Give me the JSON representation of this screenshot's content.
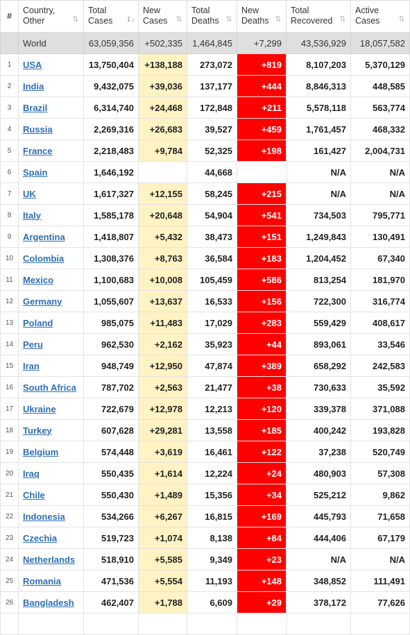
{
  "table": {
    "headers": [
      {
        "lines": [
          "#"
        ],
        "sortable": false
      },
      {
        "lines": [
          "Country,",
          "Other"
        ],
        "sortable": true,
        "sort_icon": "sort-both-icon"
      },
      {
        "lines": [
          "Total",
          "Cases"
        ],
        "sortable": true,
        "sort_icon": "sort-desc-active-icon"
      },
      {
        "lines": [
          "New",
          "Cases"
        ],
        "sortable": true,
        "sort_icon": "sort-both-icon"
      },
      {
        "lines": [
          "Total",
          "Deaths"
        ],
        "sortable": true,
        "sort_icon": "sort-both-icon"
      },
      {
        "lines": [
          "New",
          "Deaths"
        ],
        "sortable": true,
        "sort_icon": "sort-both-icon"
      },
      {
        "lines": [
          "Total",
          "Recovered"
        ],
        "sortable": true,
        "sort_icon": "sort-both-icon"
      },
      {
        "lines": [
          "Active",
          "Cases"
        ],
        "sortable": true,
        "sort_icon": "sort-both-icon"
      }
    ],
    "world": {
      "rank": "",
      "country": "World",
      "total_cases": "63,059,356",
      "new_cases": "+502,335",
      "total_deaths": "1,464,845",
      "new_deaths": "+7,299",
      "total_recovered": "43,536,929",
      "active_cases": "18,057,582"
    },
    "rows": [
      {
        "rank": "1",
        "country": "USA",
        "total_cases": "13,750,404",
        "new_cases": "+138,188",
        "total_deaths": "273,072",
        "new_deaths": "+819",
        "total_recovered": "8,107,203",
        "active_cases": "5,370,129"
      },
      {
        "rank": "2",
        "country": "India",
        "total_cases": "9,432,075",
        "new_cases": "+39,036",
        "total_deaths": "137,177",
        "new_deaths": "+444",
        "total_recovered": "8,846,313",
        "active_cases": "448,585"
      },
      {
        "rank": "3",
        "country": "Brazil",
        "total_cases": "6,314,740",
        "new_cases": "+24,468",
        "total_deaths": "172,848",
        "new_deaths": "+211",
        "total_recovered": "5,578,118",
        "active_cases": "563,774"
      },
      {
        "rank": "4",
        "country": "Russia",
        "total_cases": "2,269,316",
        "new_cases": "+26,683",
        "total_deaths": "39,527",
        "new_deaths": "+459",
        "total_recovered": "1,761,457",
        "active_cases": "468,332"
      },
      {
        "rank": "5",
        "country": "France",
        "total_cases": "2,218,483",
        "new_cases": "+9,784",
        "total_deaths": "52,325",
        "new_deaths": "+198",
        "total_recovered": "161,427",
        "active_cases": "2,004,731"
      },
      {
        "rank": "6",
        "country": "Spain",
        "total_cases": "1,646,192",
        "new_cases": "",
        "total_deaths": "44,668",
        "new_deaths": "",
        "total_recovered": "N/A",
        "active_cases": "N/A"
      },
      {
        "rank": "7",
        "country": "UK",
        "total_cases": "1,617,327",
        "new_cases": "+12,155",
        "total_deaths": "58,245",
        "new_deaths": "+215",
        "total_recovered": "N/A",
        "active_cases": "N/A"
      },
      {
        "rank": "8",
        "country": "Italy",
        "total_cases": "1,585,178",
        "new_cases": "+20,648",
        "total_deaths": "54,904",
        "new_deaths": "+541",
        "total_recovered": "734,503",
        "active_cases": "795,771"
      },
      {
        "rank": "9",
        "country": "Argentina",
        "total_cases": "1,418,807",
        "new_cases": "+5,432",
        "total_deaths": "38,473",
        "new_deaths": "+151",
        "total_recovered": "1,249,843",
        "active_cases": "130,491"
      },
      {
        "rank": "10",
        "country": "Colombia",
        "total_cases": "1,308,376",
        "new_cases": "+8,763",
        "total_deaths": "36,584",
        "new_deaths": "+183",
        "total_recovered": "1,204,452",
        "active_cases": "67,340"
      },
      {
        "rank": "11",
        "country": "Mexico",
        "total_cases": "1,100,683",
        "new_cases": "+10,008",
        "total_deaths": "105,459",
        "new_deaths": "+586",
        "total_recovered": "813,254",
        "active_cases": "181,970"
      },
      {
        "rank": "12",
        "country": "Germany",
        "total_cases": "1,055,607",
        "new_cases": "+13,637",
        "total_deaths": "16,533",
        "new_deaths": "+156",
        "total_recovered": "722,300",
        "active_cases": "316,774"
      },
      {
        "rank": "13",
        "country": "Poland",
        "total_cases": "985,075",
        "new_cases": "+11,483",
        "total_deaths": "17,029",
        "new_deaths": "+283",
        "total_recovered": "559,429",
        "active_cases": "408,617"
      },
      {
        "rank": "14",
        "country": "Peru",
        "total_cases": "962,530",
        "new_cases": "+2,162",
        "total_deaths": "35,923",
        "new_deaths": "+44",
        "total_recovered": "893,061",
        "active_cases": "33,546"
      },
      {
        "rank": "15",
        "country": "Iran",
        "total_cases": "948,749",
        "new_cases": "+12,950",
        "total_deaths": "47,874",
        "new_deaths": "+389",
        "total_recovered": "658,292",
        "active_cases": "242,583"
      },
      {
        "rank": "16",
        "country": "South Africa",
        "total_cases": "787,702",
        "new_cases": "+2,563",
        "total_deaths": "21,477",
        "new_deaths": "+38",
        "total_recovered": "730,633",
        "active_cases": "35,592"
      },
      {
        "rank": "17",
        "country": "Ukraine",
        "total_cases": "722,679",
        "new_cases": "+12,978",
        "total_deaths": "12,213",
        "new_deaths": "+120",
        "total_recovered": "339,378",
        "active_cases": "371,088"
      },
      {
        "rank": "18",
        "country": "Turkey",
        "total_cases": "607,628",
        "new_cases": "+29,281",
        "total_deaths": "13,558",
        "new_deaths": "+185",
        "total_recovered": "400,242",
        "active_cases": "193,828"
      },
      {
        "rank": "19",
        "country": "Belgium",
        "total_cases": "574,448",
        "new_cases": "+3,619",
        "total_deaths": "16,461",
        "new_deaths": "+122",
        "total_recovered": "37,238",
        "active_cases": "520,749"
      },
      {
        "rank": "20",
        "country": "Iraq",
        "total_cases": "550,435",
        "new_cases": "+1,614",
        "total_deaths": "12,224",
        "new_deaths": "+24",
        "total_recovered": "480,903",
        "active_cases": "57,308"
      },
      {
        "rank": "21",
        "country": "Chile",
        "total_cases": "550,430",
        "new_cases": "+1,489",
        "total_deaths": "15,356",
        "new_deaths": "+34",
        "total_recovered": "525,212",
        "active_cases": "9,862"
      },
      {
        "rank": "22",
        "country": "Indonesia",
        "total_cases": "534,266",
        "new_cases": "+6,267",
        "total_deaths": "16,815",
        "new_deaths": "+169",
        "total_recovered": "445,793",
        "active_cases": "71,658"
      },
      {
        "rank": "23",
        "country": "Czechia",
        "total_cases": "519,723",
        "new_cases": "+1,074",
        "total_deaths": "8,138",
        "new_deaths": "+84",
        "total_recovered": "444,406",
        "active_cases": "67,179"
      },
      {
        "rank": "24",
        "country": "Netherlands",
        "total_cases": "518,910",
        "new_cases": "+5,585",
        "total_deaths": "9,349",
        "new_deaths": "+23",
        "total_recovered": "N/A",
        "active_cases": "N/A"
      },
      {
        "rank": "25",
        "country": "Romania",
        "total_cases": "471,536",
        "new_cases": "+5,554",
        "total_deaths": "11,193",
        "new_deaths": "+148",
        "total_recovered": "348,852",
        "active_cases": "111,491"
      },
      {
        "rank": "26",
        "country": "Bangladesh",
        "total_cases": "462,407",
        "new_cases": "+1,788",
        "total_deaths": "6,609",
        "new_deaths": "+29",
        "total_recovered": "378,172",
        "active_cases": "77,626"
      },
      {
        "rank": "",
        "country": "",
        "total_cases": "",
        "new_cases": "",
        "total_deaths": "",
        "new_deaths": "",
        "total_recovered": "",
        "active_cases": ""
      }
    ]
  },
  "colors": {
    "new_cases_bg": "#fff2c3",
    "new_deaths_bg": "#ff0000",
    "world_row_bg": "#dfdfdf",
    "country_link": "#2e6fb4"
  }
}
